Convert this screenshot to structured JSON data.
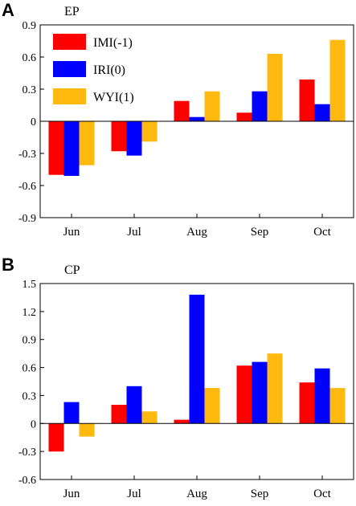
{
  "chart_data": [
    {
      "panel": "A",
      "subtitle": "EP",
      "type": "bar",
      "categories": [
        "Jun",
        "Jul",
        "Aug",
        "Sep",
        "Oct"
      ],
      "ylim": [
        -0.9,
        0.9
      ],
      "yticks": [
        -0.9,
        -0.6,
        -0.3,
        0,
        0.3,
        0.6,
        0.9
      ],
      "ytick_labels": [
        "-0.9",
        "-0.6",
        "-0.3",
        "0",
        "0.3",
        "0.6",
        "0.9"
      ],
      "legend": "top-left",
      "grid": false,
      "series": [
        {
          "name": "IMI(-1)",
          "color": "#ff0000",
          "values": [
            -0.5,
            -0.28,
            0.19,
            0.08,
            0.39
          ]
        },
        {
          "name": "IRI(0)",
          "color": "#0000ff",
          "values": [
            -0.51,
            -0.32,
            0.04,
            0.28,
            0.16
          ]
        },
        {
          "name": "WYI(1)",
          "color": "#ffb90f",
          "values": [
            -0.41,
            -0.19,
            0.28,
            0.63,
            0.76
          ]
        }
      ]
    },
    {
      "panel": "B",
      "subtitle": "CP",
      "type": "bar",
      "categories": [
        "Jun",
        "Jul",
        "Aug",
        "Sep",
        "Oct"
      ],
      "ylim": [
        -0.6,
        1.5
      ],
      "yticks": [
        -0.6,
        -0.3,
        0,
        0.3,
        0.6,
        0.9,
        1.2,
        1.5
      ],
      "ytick_labels": [
        "-0.6",
        "-0.3",
        "0",
        "0.3",
        "0.6",
        "0.9",
        "1.2",
        "1.5"
      ],
      "grid": false,
      "series": [
        {
          "name": "IMI(-1)",
          "color": "#ff0000",
          "values": [
            -0.3,
            0.2,
            0.04,
            0.62,
            0.44
          ]
        },
        {
          "name": "IRI(0)",
          "color": "#0000ff",
          "values": [
            0.23,
            0.4,
            1.38,
            0.66,
            0.59
          ]
        },
        {
          "name": "WYI(1)",
          "color": "#ffb90f",
          "values": [
            -0.14,
            0.13,
            0.38,
            0.75,
            0.38
          ]
        }
      ]
    }
  ]
}
